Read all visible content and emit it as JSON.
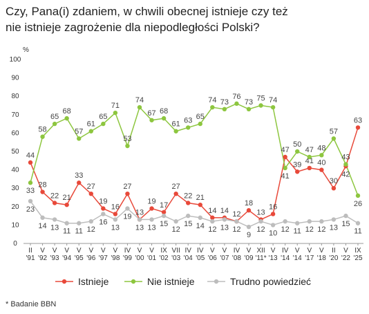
{
  "chart_data": {
    "type": "line",
    "title": [
      "Czy, Pana(i) zdaniem, w chwili obecnej istnieje czy też",
      "nie istnieje zagrożenie dla niepodległości Polski?"
    ],
    "y_label": "%",
    "footnote": "* Badanie BBN",
    "categories": [
      "II '91",
      "V '92",
      "V '93",
      "V '94",
      "V '95",
      "V '96",
      "V '97",
      "V '98",
      "IV '99",
      "V '00",
      "V '01",
      "IX '02",
      "VII '03",
      "IV '04",
      "IV '05",
      "V '06",
      "V '07",
      "IV '08",
      "V '09",
      "XII '11*",
      "V '13",
      "IV '14",
      "V '14",
      "V '17",
      "V '18",
      "II '20",
      "V '22",
      "IX '25"
    ],
    "series": [
      {
        "name": "Istnieje",
        "color": "#e8493a",
        "values": [
          44,
          28,
          22,
          21,
          33,
          27,
          19,
          16,
          27,
          13,
          19,
          17,
          27,
          22,
          21,
          14,
          14,
          12,
          18,
          13,
          16,
          47,
          39,
          41,
          40,
          30,
          42,
          63
        ]
      },
      {
        "name": "Nie istnieje",
        "color": "#8dc63f",
        "values": [
          33,
          58,
          65,
          68,
          57,
          61,
          65,
          71,
          53,
          74,
          67,
          68,
          61,
          63,
          65,
          74,
          73,
          76,
          73,
          75,
          74,
          41,
          50,
          47,
          48,
          57,
          43,
          26
        ]
      },
      {
        "name": "Trudno powiedzieć",
        "color": "#bdbdbd",
        "values": [
          23,
          14,
          13,
          11,
          11,
          12,
          16,
          13,
          19,
          13,
          13,
          15,
          12,
          15,
          14,
          12,
          13,
          12,
          9,
          12,
          10,
          12,
          11,
          12,
          12,
          13,
          15,
          11
        ]
      }
    ],
    "ylim": [
      0,
      100
    ],
    "yticks": [
      0,
      10,
      20,
      30,
      40,
      50,
      60,
      70,
      80,
      90,
      100
    ],
    "grid": false
  }
}
